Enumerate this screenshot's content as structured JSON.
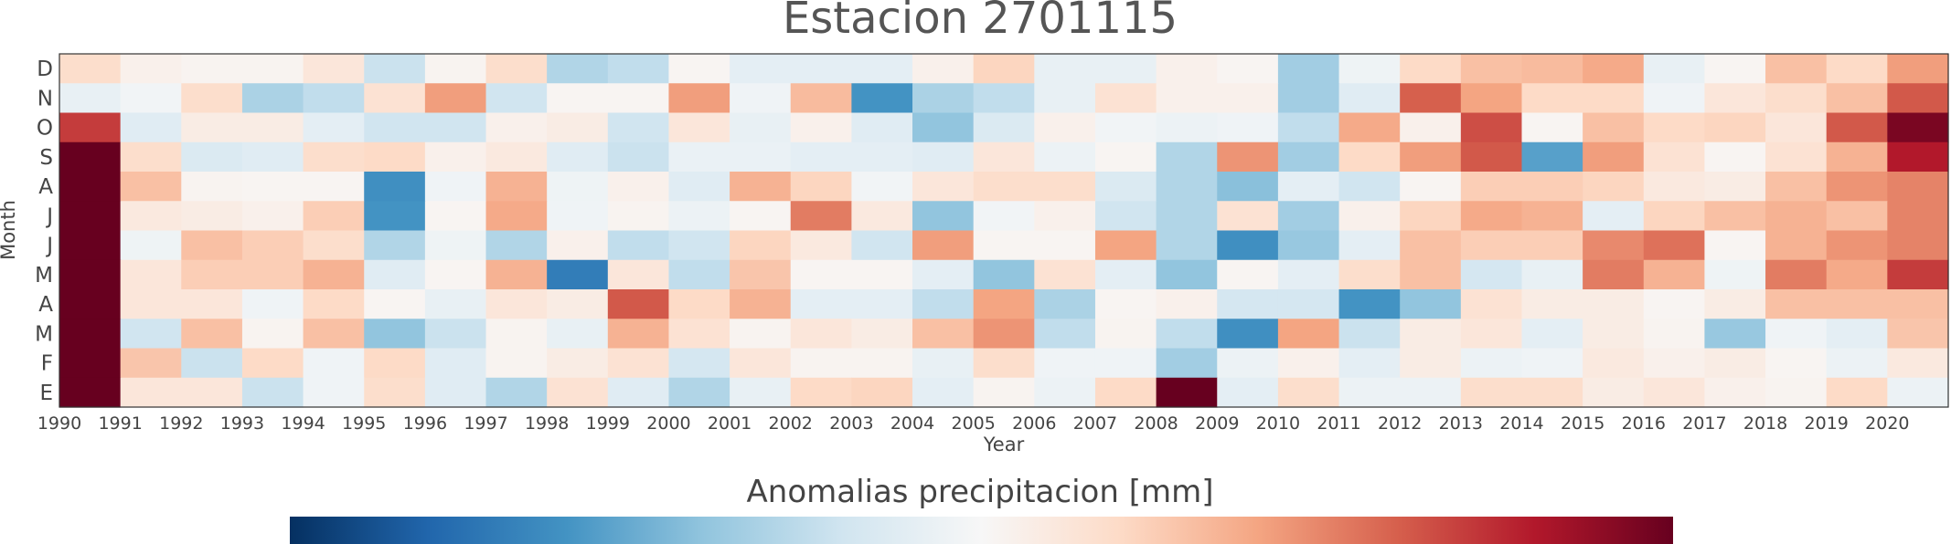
{
  "chart_data": {
    "type": "heatmap",
    "title": "Estacion 2701115",
    "xlabel": "Year",
    "ylabel": "Month",
    "colorbar_label": "Anomalias precipitacion [mm]",
    "colormap": "RdBu_r (diverging blue-white-red)",
    "x_categories": [
      "1990",
      "1991",
      "1992",
      "1993",
      "1994",
      "1995",
      "1996",
      "1997",
      "1998",
      "1999",
      "2000",
      "2001",
      "2002",
      "2003",
      "2004",
      "2005",
      "2006",
      "2007",
      "2008",
      "2009",
      "2010",
      "2011",
      "2012",
      "2013",
      "2014",
      "2015",
      "2016",
      "2017",
      "2018",
      "2019",
      "2020"
    ],
    "y_categories": [
      "D",
      "N",
      "O",
      "S",
      "A",
      "J",
      "J",
      "M",
      "A",
      "M",
      "F",
      "E"
    ],
    "values_note": "relative anomaly intensity per cell, -1 (deep blue) to +1 (dark red), estimated from colors",
    "values": [
      [
        0.18,
        0.05,
        0.03,
        0.03,
        0.12,
        -0.22,
        0.03,
        0.18,
        -0.3,
        -0.25,
        0.02,
        -0.1,
        -0.1,
        -0.1,
        0.05,
        0.22,
        -0.08,
        -0.08,
        0.05,
        0.02,
        -0.35,
        -0.05,
        0.2,
        0.3,
        0.32,
        0.38,
        -0.08,
        0.02,
        0.3,
        0.2,
        0.42
      ],
      [
        -0.08,
        -0.03,
        0.18,
        -0.32,
        -0.25,
        0.15,
        0.42,
        -0.2,
        0.02,
        0.02,
        0.42,
        -0.04,
        0.32,
        -0.6,
        -0.32,
        -0.25,
        -0.08,
        0.15,
        0.05,
        0.05,
        -0.35,
        -0.12,
        0.6,
        0.4,
        0.2,
        0.2,
        -0.04,
        0.12,
        0.18,
        0.3,
        0.62
      ],
      [
        0.7,
        -0.12,
        0.08,
        0.08,
        -0.1,
        -0.2,
        -0.2,
        0.05,
        0.08,
        -0.2,
        0.12,
        -0.08,
        0.05,
        -0.12,
        -0.4,
        -0.15,
        0.05,
        -0.03,
        -0.06,
        -0.04,
        -0.25,
        0.38,
        0.05,
        0.65,
        0.02,
        0.3,
        0.2,
        0.22,
        0.12,
        0.62,
        0.95
      ],
      [
        1.0,
        0.18,
        -0.15,
        -0.12,
        0.18,
        0.2,
        0.05,
        0.1,
        -0.12,
        -0.22,
        -0.07,
        -0.07,
        -0.1,
        -0.1,
        -0.12,
        0.12,
        -0.06,
        0.02,
        -0.3,
        0.45,
        -0.35,
        0.2,
        0.42,
        0.62,
        -0.55,
        0.42,
        0.15,
        0.02,
        0.15,
        0.35,
        0.8
      ],
      [
        1.0,
        0.3,
        0.03,
        0.02,
        0.02,
        -0.62,
        -0.04,
        0.35,
        -0.05,
        0.05,
        -0.12,
        0.35,
        0.22,
        -0.03,
        0.12,
        0.18,
        0.18,
        -0.15,
        -0.3,
        -0.42,
        -0.1,
        -0.2,
        0.02,
        0.25,
        0.25,
        0.22,
        0.1,
        0.08,
        0.3,
        0.45,
        0.5
      ],
      [
        1.0,
        0.1,
        0.08,
        0.05,
        0.25,
        -0.6,
        0.02,
        0.38,
        -0.04,
        0.03,
        -0.06,
        0.02,
        0.52,
        0.1,
        -0.4,
        -0.03,
        0.05,
        -0.2,
        -0.3,
        0.15,
        -0.35,
        0.05,
        0.22,
        0.38,
        0.35,
        -0.1,
        0.22,
        0.3,
        0.35,
        0.3,
        0.5
      ],
      [
        1.0,
        -0.05,
        0.3,
        0.25,
        0.18,
        -0.3,
        -0.05,
        -0.3,
        0.05,
        -0.25,
        -0.2,
        0.22,
        0.1,
        -0.2,
        0.42,
        0.02,
        0.02,
        0.4,
        -0.3,
        -0.62,
        -0.38,
        -0.1,
        0.3,
        0.25,
        0.25,
        0.48,
        0.55,
        0.02,
        0.35,
        0.45,
        0.5
      ],
      [
        1.0,
        0.12,
        0.25,
        0.25,
        0.35,
        -0.12,
        0.02,
        0.35,
        -0.7,
        0.12,
        -0.25,
        0.28,
        0.02,
        0.02,
        -0.1,
        -0.4,
        0.15,
        -0.1,
        -0.4,
        0.02,
        -0.1,
        0.18,
        0.3,
        -0.18,
        -0.08,
        0.52,
        0.35,
        -0.05,
        0.52,
        0.38,
        0.7
      ],
      [
        1.0,
        0.12,
        0.12,
        -0.04,
        0.2,
        0.02,
        -0.08,
        0.12,
        0.08,
        0.62,
        0.2,
        0.35,
        -0.1,
        -0.1,
        -0.25,
        0.4,
        -0.32,
        0.02,
        0.05,
        -0.18,
        -0.18,
        -0.6,
        -0.4,
        0.15,
        0.08,
        0.08,
        0.02,
        0.08,
        0.3,
        0.3,
        0.3
      ],
      [
        1.0,
        -0.2,
        0.3,
        0.03,
        0.3,
        -0.4,
        -0.22,
        0.03,
        -0.08,
        0.35,
        0.15,
        0.03,
        0.12,
        0.08,
        0.3,
        0.45,
        -0.25,
        0.03,
        -0.25,
        -0.62,
        0.4,
        -0.22,
        0.08,
        0.12,
        -0.1,
        0.08,
        0.03,
        -0.38,
        -0.04,
        -0.1,
        0.28
      ],
      [
        1.0,
        0.28,
        -0.22,
        0.2,
        -0.04,
        0.2,
        -0.12,
        0.03,
        0.08,
        0.15,
        -0.18,
        0.12,
        0.03,
        0.03,
        -0.08,
        0.18,
        -0.04,
        -0.04,
        -0.35,
        -0.06,
        0.05,
        -0.1,
        0.08,
        -0.06,
        -0.04,
        0.1,
        0.05,
        0.08,
        0.02,
        -0.06,
        0.1
      ],
      [
        1.0,
        0.12,
        0.12,
        -0.22,
        -0.04,
        0.18,
        -0.12,
        -0.3,
        0.15,
        -0.12,
        -0.3,
        -0.08,
        0.2,
        0.22,
        -0.1,
        0.03,
        -0.06,
        0.2,
        1.0,
        -0.1,
        0.18,
        -0.06,
        -0.06,
        0.18,
        0.18,
        0.08,
        0.12,
        0.05,
        0.03,
        0.2,
        -0.06
      ]
    ],
    "colorbar_ticks": []
  }
}
